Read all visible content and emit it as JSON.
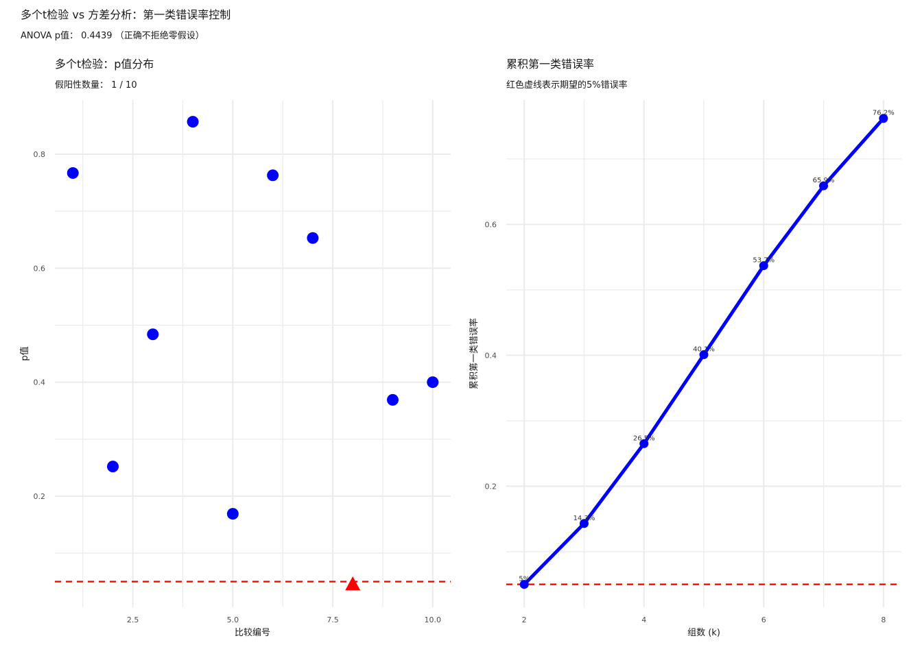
{
  "figure": {
    "title": "多个t检验 vs 方差分析：第一类错误率控制",
    "subtitle": "ANOVA p值： 0.4439 （正确不拒绝零假设）"
  },
  "colors": {
    "points": "#0000ff",
    "reference_line": "#ff0000",
    "grid": "#ebebeb"
  },
  "chart_data": [
    {
      "type": "scatter",
      "title": "多个t检验：p值分布",
      "subtitle": "假阳性数量： 1 / 10",
      "xlabel": "比较编号",
      "ylabel": "p值",
      "xlim": [
        0.55,
        10.45
      ],
      "ylim": [
        0.005,
        0.895
      ],
      "x_ticks": [
        2.5,
        5.0,
        7.5,
        10.0
      ],
      "x_tick_labels": [
        "2.5",
        "5.0",
        "7.5",
        "10.0"
      ],
      "y_ticks": [
        0.2,
        0.4,
        0.6,
        0.8
      ],
      "y_tick_labels": [
        "0.2",
        "0.4",
        "0.6",
        "0.8"
      ],
      "grid": true,
      "reference_line": {
        "y": 0.05,
        "style": "dashed",
        "color": "#ff0000"
      },
      "points": [
        {
          "x": 1,
          "y": 0.767,
          "shape": "circle",
          "color": "#0000ff"
        },
        {
          "x": 2,
          "y": 0.252,
          "shape": "circle",
          "color": "#0000ff"
        },
        {
          "x": 3,
          "y": 0.484,
          "shape": "circle",
          "color": "#0000ff"
        },
        {
          "x": 4,
          "y": 0.857,
          "shape": "circle",
          "color": "#0000ff"
        },
        {
          "x": 5,
          "y": 0.169,
          "shape": "circle",
          "color": "#0000ff"
        },
        {
          "x": 6,
          "y": 0.763,
          "shape": "circle",
          "color": "#0000ff"
        },
        {
          "x": 7,
          "y": 0.653,
          "shape": "circle",
          "color": "#0000ff"
        },
        {
          "x": 8,
          "y": 0.046,
          "shape": "triangle",
          "color": "#ff0000"
        },
        {
          "x": 9,
          "y": 0.369,
          "shape": "circle",
          "color": "#0000ff"
        },
        {
          "x": 10,
          "y": 0.4,
          "shape": "circle",
          "color": "#0000ff"
        }
      ]
    },
    {
      "type": "line",
      "title": "累积第一类错误率",
      "subtitle": "红色虚线表示期望的5%错误率",
      "xlabel": "组数 (k)",
      "ylabel": "累积第一类错误率",
      "xlim": [
        1.7,
        8.3
      ],
      "ylim": [
        0.015,
        0.79
      ],
      "x_ticks": [
        2,
        4,
        6,
        8
      ],
      "x_tick_labels": [
        "2",
        "4",
        "6",
        "8"
      ],
      "y_ticks": [
        0.2,
        0.4,
        0.6
      ],
      "y_tick_labels": [
        "0.2",
        "0.4",
        "0.6"
      ],
      "grid": true,
      "reference_line": {
        "y": 0.05,
        "style": "dashed",
        "color": "#ff0000"
      },
      "x": [
        2,
        3,
        4,
        5,
        6,
        7,
        8
      ],
      "y": [
        0.05,
        0.143,
        0.265,
        0.401,
        0.537,
        0.659,
        0.762
      ],
      "labels": [
        "5%",
        "14.3%",
        "26.5%",
        "40.1%",
        "53.7%",
        "65.9%",
        "76.2%"
      ],
      "color": "#0000ff"
    }
  ]
}
